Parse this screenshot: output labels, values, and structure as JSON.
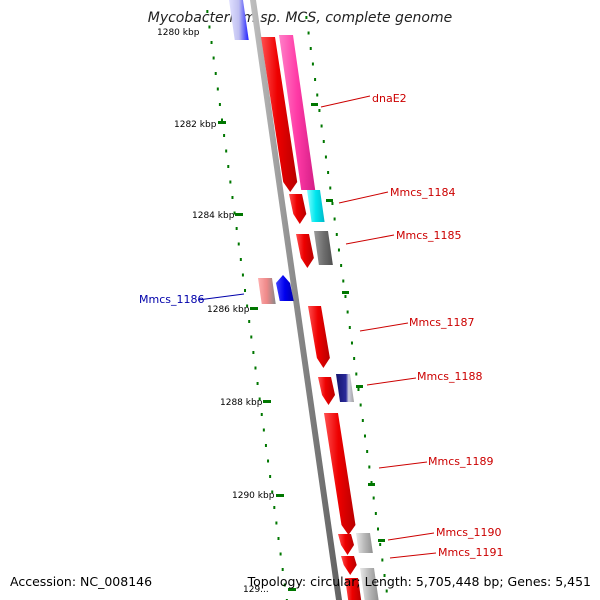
{
  "title": "Mycobacterium sp. MCS, complete genome",
  "footer": {
    "accession": "Accession: NC_008146",
    "summary": "Topology: circular; Length: 5,705,448 bp; Genes: 5,451"
  },
  "scale_ticks": [
    {
      "label": "1280 kbp"
    },
    {
      "label": "1282 kbp"
    },
    {
      "label": "1284 kbp"
    },
    {
      "label": "1286 kbp"
    },
    {
      "label": "1288 kbp"
    },
    {
      "label": "1290 kbp"
    },
    {
      "label": "129..."
    }
  ],
  "genes": [
    {
      "name": "dnaE2"
    },
    {
      "name": "Mmcs_1184"
    },
    {
      "name": "Mmcs_1185"
    },
    {
      "name": "Mmcs_1186"
    },
    {
      "name": "Mmcs_1187"
    },
    {
      "name": "Mmcs_1188"
    },
    {
      "name": "Mmcs_1189"
    },
    {
      "name": "Mmcs_1190"
    },
    {
      "name": "Mmcs_1191"
    }
  ],
  "colors": {
    "backbone": "#8a8a8a",
    "cds_forward": "#e00000",
    "cds_reverse": "#e00000",
    "label_forward": "#cc0000",
    "label_reverse": "#0000aa",
    "tick": "#007700",
    "magenta": "#ff3aa6",
    "cyan": "#00e6ee",
    "gray": "#6f6f6f",
    "navy": "#14146e",
    "blue": "#0000ee",
    "pink": "#ee8888",
    "silver": "#b8b8b8"
  }
}
